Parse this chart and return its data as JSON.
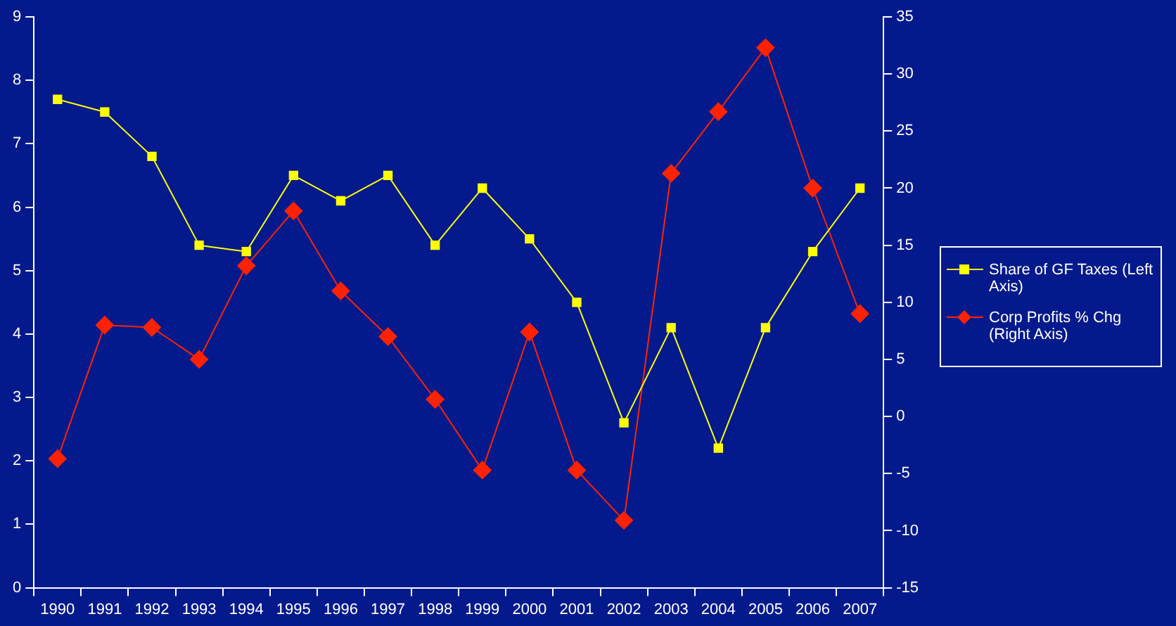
{
  "chart_data": {
    "type": "line",
    "categories": [
      "1990",
      "1991",
      "1992",
      "1993",
      "1994",
      "1995",
      "1996",
      "1997",
      "1998",
      "1999",
      "2000",
      "2001",
      "2002",
      "2003",
      "2004",
      "2005",
      "2006",
      "2007"
    ],
    "series": [
      {
        "name": "Share of GF Taxes (Left Axis)",
        "color": "#ffff00",
        "marker": "square",
        "values": [
          7.7,
          7.5,
          6.8,
          5.4,
          5.3,
          6.5,
          6.1,
          6.5,
          5.4,
          6.3,
          5.5,
          4.5,
          2.6,
          4.1,
          2.2,
          4.1,
          5.3,
          6.3
        ]
      },
      {
        "name": "Corp Profits % Chg (Right Axis)",
        "color": "#ff2200",
        "marker": "diamond",
        "axis": "y2",
        "values": [
          -3.7,
          8.0,
          7.8,
          5.0,
          13.2,
          18.0,
          11.0,
          7.0,
          1.5,
          -4.7,
          7.4,
          -4.7,
          -9.1,
          21.3,
          26.7,
          32.3,
          20.0,
          9.0
        ]
      }
    ],
    "ylim": [
      0,
      9
    ],
    "yticks": [
      0,
      1,
      2,
      3,
      4,
      5,
      6,
      7,
      8,
      9
    ],
    "y2lim": [
      -15,
      35
    ],
    "y2ticks": [
      -15,
      -10,
      -5,
      0,
      5,
      10,
      15,
      20,
      25,
      30,
      35
    ],
    "grid": false,
    "legend": "right",
    "line_style": "solid"
  }
}
